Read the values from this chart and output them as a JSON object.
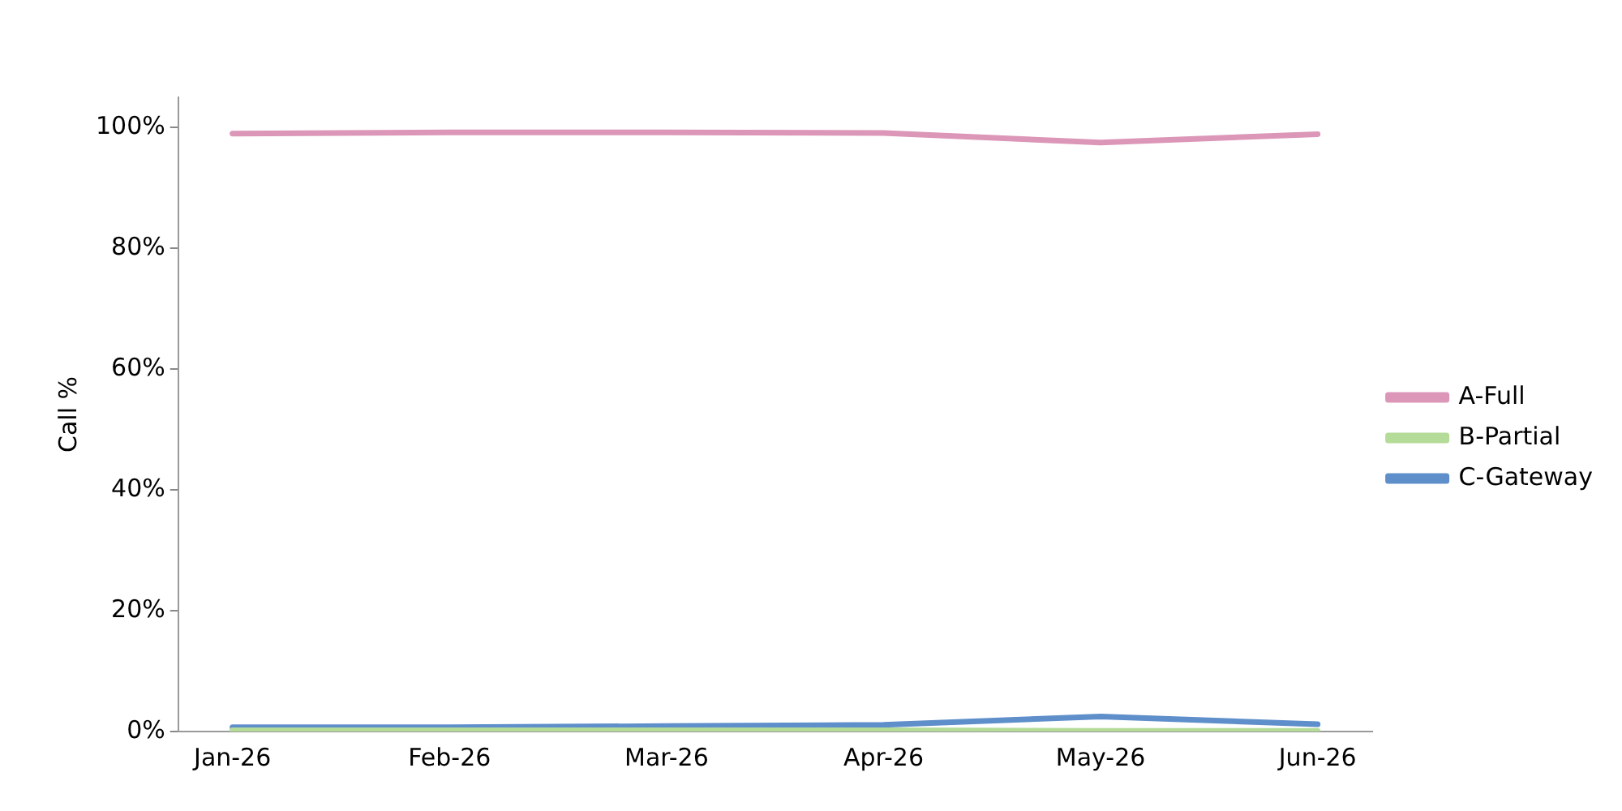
{
  "chart_data": {
    "type": "line",
    "ylabel": "Call %",
    "categories": [
      "Jan-26",
      "Feb-26",
      "Mar-26",
      "Apr-26",
      "May-26",
      "Jun-26"
    ],
    "series": [
      {
        "name": "A-Full",
        "color": "#dc97b8",
        "values": [
          99.0,
          99.2,
          99.2,
          99.1,
          97.5,
          98.9
        ]
      },
      {
        "name": "B-Partial",
        "color": "#b5db98",
        "values": [
          0.2,
          0.2,
          0.2,
          0.2,
          0.1,
          0.1
        ]
      },
      {
        "name": "C-Gateway",
        "color": "#5f8fca",
        "values": [
          0.7,
          0.7,
          0.9,
          1.1,
          2.5,
          1.2
        ]
      }
    ],
    "ylim": [
      0,
      105
    ],
    "yticks": [
      {
        "value": 0,
        "label": "0%"
      },
      {
        "value": 20,
        "label": "20%"
      },
      {
        "value": 40,
        "label": "40%"
      },
      {
        "value": 60,
        "label": "60%"
      },
      {
        "value": 80,
        "label": "80%"
      },
      {
        "value": 100,
        "label": "100%"
      }
    ],
    "legend": "right",
    "grid": false,
    "marker": "none",
    "line_style": "solid"
  }
}
